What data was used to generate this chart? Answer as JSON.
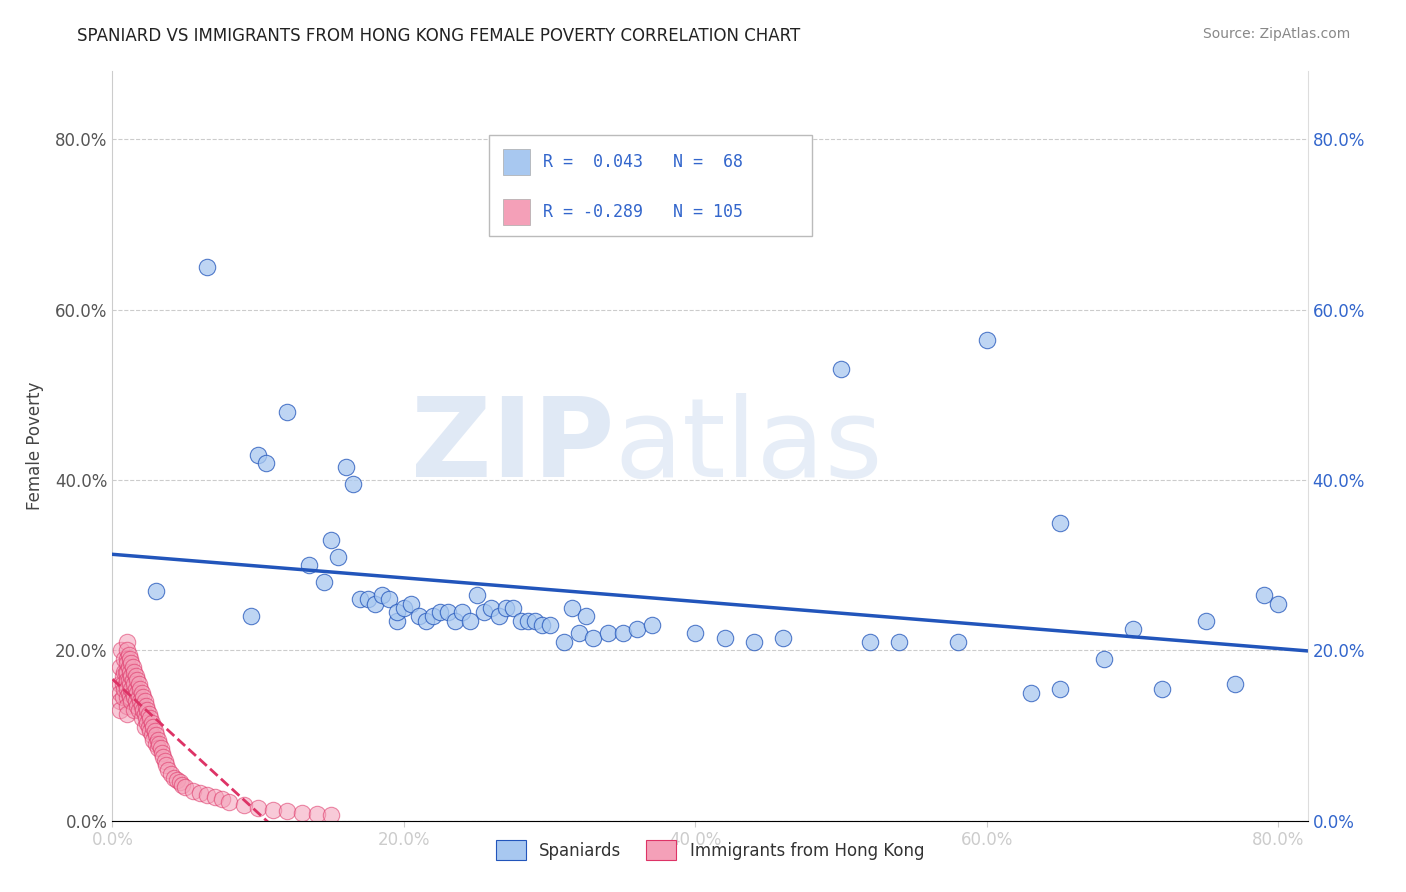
{
  "title": "SPANIARD VS IMMIGRANTS FROM HONG KONG FEMALE POVERTY CORRELATION CHART",
  "source": "Source: ZipAtlas.com",
  "ylabel": "Female Poverty",
  "watermark_zip": "ZIP",
  "watermark_atlas": "atlas",
  "xlim": [
    0.0,
    0.82
  ],
  "ylim": [
    0.0,
    0.88
  ],
  "xticks": [
    0.0,
    0.2,
    0.4,
    0.6,
    0.8
  ],
  "yticks": [
    0.0,
    0.2,
    0.4,
    0.6,
    0.8
  ],
  "xtick_labels": [
    "0.0%",
    "20.0%",
    "40.0%",
    "60.0%",
    "80.0%"
  ],
  "ytick_labels": [
    "0.0%",
    "20.0%",
    "40.0%",
    "60.0%",
    "80.0%"
  ],
  "spaniards_color": "#a8c8f0",
  "hk_color": "#f4a0b8",
  "trend_blue": "#2255bb",
  "trend_pink": "#dd3366",
  "R_spaniards": 0.043,
  "N_spaniards": 68,
  "R_hk": -0.289,
  "N_hk": 105,
  "legend_label_spaniards": "Spaniards",
  "legend_label_hk": "Immigrants from Hong Kong",
  "spaniards_x": [
    0.03,
    0.065,
    0.095,
    0.1,
    0.105,
    0.12,
    0.135,
    0.145,
    0.15,
    0.155,
    0.16,
    0.165,
    0.17,
    0.175,
    0.18,
    0.185,
    0.19,
    0.195,
    0.195,
    0.2,
    0.205,
    0.21,
    0.215,
    0.22,
    0.225,
    0.23,
    0.235,
    0.24,
    0.245,
    0.25,
    0.255,
    0.26,
    0.265,
    0.27,
    0.275,
    0.28,
    0.285,
    0.29,
    0.295,
    0.3,
    0.31,
    0.315,
    0.32,
    0.325,
    0.33,
    0.34,
    0.35,
    0.36,
    0.37,
    0.4,
    0.42,
    0.44,
    0.46,
    0.5,
    0.52,
    0.54,
    0.58,
    0.6,
    0.63,
    0.65,
    0.65,
    0.68,
    0.7,
    0.72,
    0.75,
    0.77,
    0.79,
    0.8
  ],
  "spaniards_y": [
    0.27,
    0.65,
    0.24,
    0.43,
    0.42,
    0.48,
    0.3,
    0.28,
    0.33,
    0.31,
    0.415,
    0.395,
    0.26,
    0.26,
    0.255,
    0.265,
    0.26,
    0.235,
    0.245,
    0.25,
    0.255,
    0.24,
    0.235,
    0.24,
    0.245,
    0.245,
    0.235,
    0.245,
    0.235,
    0.265,
    0.245,
    0.25,
    0.24,
    0.25,
    0.25,
    0.235,
    0.235,
    0.235,
    0.23,
    0.23,
    0.21,
    0.25,
    0.22,
    0.24,
    0.215,
    0.22,
    0.22,
    0.225,
    0.23,
    0.22,
    0.215,
    0.21,
    0.215,
    0.53,
    0.21,
    0.21,
    0.21,
    0.565,
    0.15,
    0.155,
    0.35,
    0.19,
    0.225,
    0.155,
    0.235,
    0.16,
    0.265,
    0.255
  ],
  "hk_x": [
    0.005,
    0.005,
    0.005,
    0.005,
    0.005,
    0.006,
    0.007,
    0.007,
    0.007,
    0.008,
    0.008,
    0.008,
    0.009,
    0.009,
    0.01,
    0.01,
    0.01,
    0.01,
    0.01,
    0.01,
    0.01,
    0.01,
    0.01,
    0.01,
    0.011,
    0.011,
    0.011,
    0.011,
    0.012,
    0.012,
    0.012,
    0.012,
    0.013,
    0.013,
    0.013,
    0.013,
    0.014,
    0.014,
    0.014,
    0.015,
    0.015,
    0.015,
    0.015,
    0.016,
    0.016,
    0.016,
    0.017,
    0.017,
    0.017,
    0.018,
    0.018,
    0.018,
    0.019,
    0.019,
    0.02,
    0.02,
    0.02,
    0.021,
    0.021,
    0.022,
    0.022,
    0.022,
    0.023,
    0.023,
    0.024,
    0.024,
    0.025,
    0.025,
    0.026,
    0.026,
    0.027,
    0.027,
    0.028,
    0.028,
    0.029,
    0.03,
    0.03,
    0.031,
    0.031,
    0.032,
    0.033,
    0.034,
    0.035,
    0.036,
    0.037,
    0.038,
    0.04,
    0.042,
    0.044,
    0.046,
    0.048,
    0.05,
    0.055,
    0.06,
    0.065,
    0.07,
    0.075,
    0.08,
    0.09,
    0.1,
    0.11,
    0.12,
    0.13,
    0.14,
    0.15
  ],
  "hk_y": [
    0.18,
    0.16,
    0.15,
    0.14,
    0.13,
    0.2,
    0.17,
    0.16,
    0.145,
    0.19,
    0.175,
    0.155,
    0.175,
    0.16,
    0.21,
    0.2,
    0.19,
    0.185,
    0.175,
    0.165,
    0.155,
    0.145,
    0.135,
    0.125,
    0.195,
    0.18,
    0.165,
    0.15,
    0.19,
    0.175,
    0.16,
    0.145,
    0.185,
    0.17,
    0.155,
    0.14,
    0.18,
    0.165,
    0.15,
    0.175,
    0.16,
    0.145,
    0.13,
    0.17,
    0.155,
    0.14,
    0.165,
    0.15,
    0.135,
    0.16,
    0.145,
    0.13,
    0.155,
    0.14,
    0.15,
    0.135,
    0.12,
    0.145,
    0.13,
    0.14,
    0.125,
    0.11,
    0.135,
    0.12,
    0.13,
    0.115,
    0.125,
    0.11,
    0.12,
    0.105,
    0.115,
    0.1,
    0.11,
    0.095,
    0.105,
    0.1,
    0.09,
    0.095,
    0.085,
    0.09,
    0.085,
    0.08,
    0.075,
    0.07,
    0.065,
    0.06,
    0.055,
    0.05,
    0.048,
    0.045,
    0.042,
    0.04,
    0.035,
    0.032,
    0.03,
    0.028,
    0.025,
    0.022,
    0.018,
    0.015,
    0.013,
    0.011,
    0.009,
    0.008,
    0.007
  ]
}
